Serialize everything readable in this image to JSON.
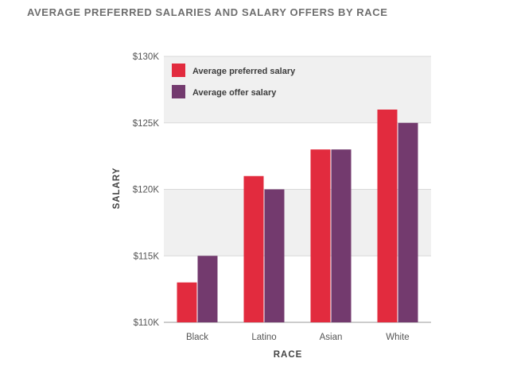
{
  "chart_data": {
    "type": "bar",
    "title": "AVERAGE PREFERRED SALARIES AND SALARY OFFERS BY RACE",
    "xlabel": "RACE",
    "ylabel": "SALARY",
    "categories": [
      "Black",
      "Latino",
      "Asian",
      "White"
    ],
    "series": [
      {
        "name": "Average preferred salary",
        "color": "#e22b3e",
        "values": [
          113,
          121,
          123,
          126
        ]
      },
      {
        "name": "Average offer salary",
        "color": "#733a6e",
        "values": [
          115,
          120,
          123,
          125
        ]
      }
    ],
    "ylim": [
      110,
      130
    ],
    "yticks": [
      {
        "value": 110,
        "label": "$110K"
      },
      {
        "value": 115,
        "label": "$115K"
      },
      {
        "value": 120,
        "label": "$120K"
      },
      {
        "value": 125,
        "label": "$125K"
      },
      {
        "value": 130,
        "label": "$130K"
      }
    ],
    "band_color": "#f0f0f0",
    "legend_position": "top-left"
  }
}
